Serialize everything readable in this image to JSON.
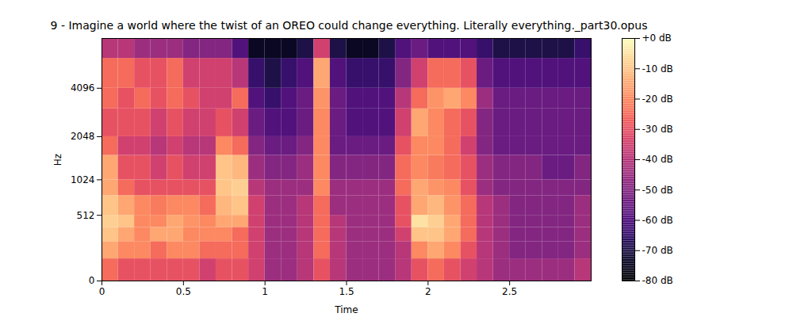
{
  "chart_data": {
    "type": "heatmap",
    "title": "9 - Imagine a world where the twist of an OREO could change everything. Literally everything._part30.opus",
    "x_label": "Time",
    "y_label": "Hz",
    "log": "y",
    "xlim": [
      0,
      3
    ],
    "xticks": [
      0,
      0.5,
      1,
      1.5,
      2,
      2.5
    ],
    "ylim": [
      0,
      8000
    ],
    "yticks": [
      0,
      512,
      1024,
      2048,
      4096
    ],
    "time_bins": [
      0,
      0.1,
      0.2,
      0.3,
      0.4,
      0.5,
      0.6,
      0.7,
      0.8,
      0.9,
      1.0,
      1.1,
      1.2,
      1.3,
      1.4,
      1.5,
      1.6,
      1.7,
      1.8,
      1.9,
      2.0,
      2.1,
      2.2,
      2.3,
      2.4,
      2.5,
      2.6,
      2.7,
      2.8,
      2.9,
      3.0
    ],
    "frequency_bins": [
      0,
      128,
      256,
      384,
      512,
      768,
      1024,
      1536,
      2048,
      3072,
      4096,
      6144,
      8000
    ],
    "values": [
      [
        -25,
        -30,
        -30,
        -30,
        -30,
        -30,
        -35,
        -30,
        -30,
        -35,
        -45,
        -45,
        -40,
        -30,
        -40,
        -45,
        -45,
        -45,
        -40,
        -30,
        -25,
        -30,
        -35,
        -40,
        -45,
        -45,
        -45,
        -45,
        -45,
        -40
      ],
      [
        -15,
        -20,
        -20,
        -25,
        -20,
        -20,
        -25,
        -25,
        -25,
        -35,
        -45,
        -45,
        -40,
        -25,
        -40,
        -45,
        -45,
        -45,
        -40,
        -20,
        -15,
        -20,
        -30,
        -40,
        -45,
        -50,
        -50,
        -50,
        -50,
        -45
      ],
      [
        -10,
        -15,
        -20,
        -15,
        -15,
        -20,
        -20,
        -20,
        -25,
        -35,
        -45,
        -45,
        -40,
        -25,
        -40,
        -45,
        -45,
        -45,
        -35,
        -10,
        -10,
        -15,
        -25,
        -40,
        -45,
        -50,
        -50,
        -50,
        -50,
        -45
      ],
      [
        -8,
        -10,
        -20,
        -20,
        -15,
        -18,
        -20,
        -15,
        -15,
        -35,
        -45,
        -45,
        -40,
        -25,
        -40,
        -45,
        -45,
        -45,
        -30,
        -5,
        -8,
        -15,
        -25,
        -40,
        -45,
        -50,
        -50,
        -50,
        -50,
        -45
      ],
      [
        -10,
        -15,
        -20,
        -22,
        -20,
        -20,
        -25,
        -12,
        -10,
        -35,
        -45,
        -45,
        -40,
        -25,
        -45,
        -45,
        -45,
        -45,
        -30,
        -15,
        -12,
        -18,
        -25,
        -40,
        -45,
        -50,
        -50,
        -50,
        -50,
        -45
      ],
      [
        -15,
        -25,
        -30,
        -30,
        -30,
        -30,
        -30,
        -10,
        -8,
        -40,
        -45,
        -45,
        -45,
        -20,
        -45,
        -45,
        -45,
        -45,
        -25,
        -15,
        -18,
        -20,
        -30,
        -45,
        -50,
        -50,
        -50,
        -50,
        -50,
        -50
      ],
      [
        -15,
        -30,
        -30,
        -35,
        -30,
        -35,
        -35,
        -10,
        -12,
        -45,
        -50,
        -50,
        -45,
        -20,
        -50,
        -50,
        -50,
        -50,
        -25,
        -20,
        -22,
        -25,
        -30,
        -45,
        -50,
        -50,
        -50,
        -55,
        -55,
        -50
      ],
      [
        -25,
        -35,
        -35,
        -40,
        -35,
        -40,
        -40,
        -20,
        -25,
        -50,
        -55,
        -55,
        -50,
        -20,
        -55,
        -55,
        -55,
        -55,
        -30,
        -20,
        -20,
        -25,
        -35,
        -50,
        -55,
        -55,
        -55,
        -55,
        -55,
        -55
      ],
      [
        -30,
        -30,
        -30,
        -35,
        -30,
        -35,
        -35,
        -30,
        -35,
        -55,
        -60,
        -60,
        -55,
        -20,
        -55,
        -60,
        -60,
        -60,
        -35,
        -15,
        -20,
        -25,
        -30,
        -50,
        -55,
        -55,
        -55,
        -55,
        -55,
        -55
      ],
      [
        -25,
        -30,
        -25,
        -30,
        -25,
        -30,
        -35,
        -35,
        -25,
        -60,
        -65,
        -60,
        -55,
        -18,
        -55,
        -60,
        -60,
        -60,
        -40,
        -25,
        -18,
        -15,
        -20,
        -45,
        -55,
        -55,
        -55,
        -55,
        -55,
        -55
      ],
      [
        -25,
        -25,
        -30,
        -30,
        -25,
        -35,
        -35,
        -35,
        -40,
        -65,
        -70,
        -65,
        -60,
        -15,
        -60,
        -65,
        -65,
        -65,
        -50,
        -35,
        -25,
        -25,
        -30,
        -55,
        -60,
        -60,
        -60,
        -60,
        -60,
        -60
      ],
      [
        -40,
        -40,
        -45,
        -45,
        -45,
        -50,
        -50,
        -50,
        -60,
        -75,
        -75,
        -75,
        -70,
        -35,
        -70,
        -75,
        -75,
        -70,
        -60,
        -55,
        -60,
        -60,
        -60,
        -65,
        -70,
        -70,
        -70,
        -70,
        -70,
        -65
      ]
    ],
    "colorbar": {
      "range": [
        -80,
        0
      ],
      "ticks": [
        {
          "value": 0,
          "label": "+0 dB"
        },
        {
          "value": -10,
          "label": "-10 dB"
        },
        {
          "value": -20,
          "label": "-20 dB"
        },
        {
          "value": -30,
          "label": "-30 dB"
        },
        {
          "value": -40,
          "label": "-40 dB"
        },
        {
          "value": -50,
          "label": "-50 dB"
        },
        {
          "value": -60,
          "label": "-60 dB"
        },
        {
          "value": -70,
          "label": "-70 dB"
        },
        {
          "value": -80,
          "label": "-80 dB"
        }
      ]
    }
  }
}
